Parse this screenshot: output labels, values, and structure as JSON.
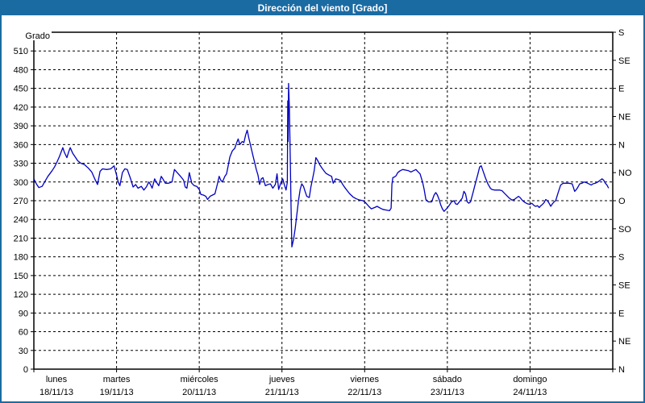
{
  "window": {
    "title": "Dirección del viento [Grado]"
  },
  "colors": {
    "titlebar_bg": "#1b6ba3",
    "frame": "#1b6ba3",
    "line": "#0000c0",
    "grid": "#000000",
    "text": "#000000",
    "background": "#ffffff"
  },
  "chart_data": {
    "type": "line",
    "title": "Dirección del viento [Grado]",
    "ylabel": "Grado",
    "ylim": [
      0,
      540
    ],
    "grid": "dashed",
    "y_ticks_left": [
      0,
      30,
      60,
      90,
      120,
      150,
      180,
      210,
      240,
      270,
      300,
      330,
      360,
      390,
      420,
      450,
      480,
      510
    ],
    "y_ticks_right": [
      {
        "value": 540,
        "label": "S"
      },
      {
        "value": 495,
        "label": "SE"
      },
      {
        "value": 450,
        "label": "E"
      },
      {
        "value": 405,
        "label": "NE"
      },
      {
        "value": 360,
        "label": "N"
      },
      {
        "value": 315,
        "label": "NO"
      },
      {
        "value": 270,
        "label": "O"
      },
      {
        "value": 225,
        "label": "SO"
      },
      {
        "value": 180,
        "label": "S"
      },
      {
        "value": 135,
        "label": "SE"
      },
      {
        "value": 90,
        "label": "E"
      },
      {
        "value": 45,
        "label": "NE"
      },
      {
        "value": 0,
        "label": "N"
      }
    ],
    "x_days": [
      {
        "label": "lunes",
        "date": "18/11/13"
      },
      {
        "label": "martes",
        "date": "19/11/13"
      },
      {
        "label": "miércoles",
        "date": "20/11/13"
      },
      {
        "label": "jueves",
        "date": "21/11/13"
      },
      {
        "label": "viernes",
        "date": "22/11/13"
      },
      {
        "label": "sábado",
        "date": "23/11/13"
      },
      {
        "label": "domingo",
        "date": "24/11/13"
      }
    ],
    "series": [
      {
        "name": "Dirección del viento",
        "color": "#0000c0",
        "points": [
          [
            0.0,
            305
          ],
          [
            0.03,
            297
          ],
          [
            0.06,
            291
          ],
          [
            0.1,
            293
          ],
          [
            0.13,
            300
          ],
          [
            0.17,
            309
          ],
          [
            0.22,
            318
          ],
          [
            0.25,
            324
          ],
          [
            0.28,
            332
          ],
          [
            0.31,
            341
          ],
          [
            0.35,
            355
          ],
          [
            0.37,
            347
          ],
          [
            0.4,
            339
          ],
          [
            0.42,
            348
          ],
          [
            0.44,
            355
          ],
          [
            0.47,
            346
          ],
          [
            0.5,
            340
          ],
          [
            0.53,
            334
          ],
          [
            0.57,
            330
          ],
          [
            0.61,
            328
          ],
          [
            0.66,
            322
          ],
          [
            0.7,
            316
          ],
          [
            0.74,
            304
          ],
          [
            0.77,
            296
          ],
          [
            0.8,
            317
          ],
          [
            0.83,
            321
          ],
          [
            0.88,
            320
          ],
          [
            0.93,
            321
          ],
          [
            0.97,
            326
          ],
          [
            1.0,
            311
          ],
          [
            1.02,
            300
          ],
          [
            1.04,
            294
          ],
          [
            1.07,
            315
          ],
          [
            1.1,
            321
          ],
          [
            1.13,
            320
          ],
          [
            1.17,
            305
          ],
          [
            1.2,
            292
          ],
          [
            1.23,
            296
          ],
          [
            1.26,
            290
          ],
          [
            1.3,
            293
          ],
          [
            1.33,
            287
          ],
          [
            1.36,
            292
          ],
          [
            1.39,
            300
          ],
          [
            1.41,
            296
          ],
          [
            1.43,
            290
          ],
          [
            1.46,
            305
          ],
          [
            1.48,
            300
          ],
          [
            1.51,
            294
          ],
          [
            1.54,
            309
          ],
          [
            1.56,
            305
          ],
          [
            1.59,
            298
          ],
          [
            1.63,
            298
          ],
          [
            1.67,
            300
          ],
          [
            1.7,
            320
          ],
          [
            1.74,
            314
          ],
          [
            1.78,
            308
          ],
          [
            1.81,
            303
          ],
          [
            1.83,
            292
          ],
          [
            1.85,
            290
          ],
          [
            1.88,
            315
          ],
          [
            1.91,
            298
          ],
          [
            1.94,
            294
          ],
          [
            1.97,
            293
          ],
          [
            2.0,
            288
          ],
          [
            2.02,
            280
          ],
          [
            2.05,
            279
          ],
          [
            2.08,
            277
          ],
          [
            2.1,
            272
          ],
          [
            2.13,
            277
          ],
          [
            2.16,
            279
          ],
          [
            2.19,
            281
          ],
          [
            2.22,
            297
          ],
          [
            2.24,
            309
          ],
          [
            2.26,
            303
          ],
          [
            2.28,
            300
          ],
          [
            2.31,
            309
          ],
          [
            2.33,
            313
          ],
          [
            2.35,
            326
          ],
          [
            2.37,
            340
          ],
          [
            2.4,
            350
          ],
          [
            2.43,
            354
          ],
          [
            2.45,
            362
          ],
          [
            2.47,
            369
          ],
          [
            2.49,
            360
          ],
          [
            2.52,
            365
          ],
          [
            2.54,
            363
          ],
          [
            2.56,
            375
          ],
          [
            2.58,
            383
          ],
          [
            2.6,
            370
          ],
          [
            2.62,
            359
          ],
          [
            2.65,
            342
          ],
          [
            2.67,
            331
          ],
          [
            2.69,
            320
          ],
          [
            2.71,
            311
          ],
          [
            2.73,
            296
          ],
          [
            2.75,
            305
          ],
          [
            2.77,
            307
          ],
          [
            2.8,
            294
          ],
          [
            2.83,
            296
          ],
          [
            2.86,
            297
          ],
          [
            2.89,
            290
          ],
          [
            2.92,
            296
          ],
          [
            2.94,
            313
          ],
          [
            2.96,
            288
          ],
          [
            2.99,
            300
          ],
          [
            3.01,
            305
          ],
          [
            3.03,
            295
          ],
          [
            3.05,
            287
          ],
          [
            3.065,
            300
          ],
          [
            3.07,
            430
          ],
          [
            3.075,
            365
          ],
          [
            3.08,
            458
          ],
          [
            3.09,
            420
          ],
          [
            3.1,
            340
          ],
          [
            3.11,
            260
          ],
          [
            3.12,
            196
          ],
          [
            3.14,
            208
          ],
          [
            3.16,
            225
          ],
          [
            3.18,
            248
          ],
          [
            3.2,
            270
          ],
          [
            3.22,
            288
          ],
          [
            3.24,
            297
          ],
          [
            3.26,
            293
          ],
          [
            3.28,
            285
          ],
          [
            3.3,
            277
          ],
          [
            3.33,
            275
          ],
          [
            3.35,
            292
          ],
          [
            3.37,
            305
          ],
          [
            3.39,
            318
          ],
          [
            3.41,
            339
          ],
          [
            3.43,
            335
          ],
          [
            3.46,
            327
          ],
          [
            3.49,
            321
          ],
          [
            3.53,
            314
          ],
          [
            3.57,
            311
          ],
          [
            3.6,
            309
          ],
          [
            3.62,
            298
          ],
          [
            3.65,
            305
          ],
          [
            3.68,
            304
          ],
          [
            3.71,
            302
          ],
          [
            3.73,
            297
          ],
          [
            3.76,
            291
          ],
          [
            3.79,
            286
          ],
          [
            3.82,
            281
          ],
          [
            3.86,
            276
          ],
          [
            3.9,
            273
          ],
          [
            3.94,
            271
          ],
          [
            3.98,
            270
          ],
          [
            4.01,
            267
          ],
          [
            4.05,
            261
          ],
          [
            4.08,
            257
          ],
          [
            4.12,
            259
          ],
          [
            4.15,
            261
          ],
          [
            4.19,
            258
          ],
          [
            4.22,
            256
          ],
          [
            4.26,
            255
          ],
          [
            4.3,
            254
          ],
          [
            4.32,
            258
          ],
          [
            4.33,
            296
          ],
          [
            4.34,
            307
          ],
          [
            4.36,
            308
          ],
          [
            4.38,
            310
          ],
          [
            4.4,
            315
          ],
          [
            4.43,
            318
          ],
          [
            4.46,
            320
          ],
          [
            4.5,
            319
          ],
          [
            4.53,
            318
          ],
          [
            4.56,
            316
          ],
          [
            4.59,
            318
          ],
          [
            4.62,
            320
          ],
          [
            4.64,
            317
          ],
          [
            4.67,
            313
          ],
          [
            4.7,
            300
          ],
          [
            4.72,
            288
          ],
          [
            4.74,
            272
          ],
          [
            4.77,
            268
          ],
          [
            4.81,
            268
          ],
          [
            4.84,
            279
          ],
          [
            4.86,
            283
          ],
          [
            4.88,
            279
          ],
          [
            4.9,
            272
          ],
          [
            4.92,
            263
          ],
          [
            4.94,
            257
          ],
          [
            4.96,
            253
          ],
          [
            4.99,
            257
          ],
          [
            5.02,
            262
          ],
          [
            5.05,
            268
          ],
          [
            5.08,
            270
          ],
          [
            5.1,
            265
          ],
          [
            5.12,
            264
          ],
          [
            5.15,
            269
          ],
          [
            5.18,
            274
          ],
          [
            5.2,
            285
          ],
          [
            5.22,
            281
          ],
          [
            5.24,
            268
          ],
          [
            5.26,
            266
          ],
          [
            5.28,
            268
          ],
          [
            5.31,
            283
          ],
          [
            5.34,
            298
          ],
          [
            5.37,
            313
          ],
          [
            5.39,
            324
          ],
          [
            5.41,
            326
          ],
          [
            5.43,
            318
          ],
          [
            5.46,
            307
          ],
          [
            5.49,
            297
          ],
          [
            5.52,
            290
          ],
          [
            5.54,
            288
          ],
          [
            5.57,
            287
          ],
          [
            5.6,
            287
          ],
          [
            5.63,
            287
          ],
          [
            5.66,
            286
          ],
          [
            5.69,
            282
          ],
          [
            5.72,
            278
          ],
          [
            5.75,
            274
          ],
          [
            5.78,
            271
          ],
          [
            5.81,
            272
          ],
          [
            5.84,
            275
          ],
          [
            5.86,
            277
          ],
          [
            5.88,
            275
          ],
          [
            5.91,
            270
          ],
          [
            5.94,
            267
          ],
          [
            5.97,
            265
          ],
          [
            6.0,
            264
          ],
          [
            6.02,
            266
          ],
          [
            6.05,
            262
          ],
          [
            6.07,
            261
          ],
          [
            6.09,
            262
          ],
          [
            6.11,
            259
          ],
          [
            6.13,
            262
          ],
          [
            6.15,
            264
          ],
          [
            6.17,
            267
          ],
          [
            6.19,
            272
          ],
          [
            6.21,
            270
          ],
          [
            6.23,
            266
          ],
          [
            6.25,
            261
          ],
          [
            6.27,
            265
          ],
          [
            6.29,
            268
          ],
          [
            6.31,
            270
          ],
          [
            6.34,
            283
          ],
          [
            6.37,
            295
          ],
          [
            6.4,
            298
          ],
          [
            6.43,
            298
          ],
          [
            6.47,
            298
          ],
          [
            6.51,
            297
          ],
          [
            6.54,
            285
          ],
          [
            6.56,
            288
          ],
          [
            6.58,
            292
          ],
          [
            6.6,
            297
          ],
          [
            6.63,
            298
          ],
          [
            6.65,
            300
          ],
          [
            6.68,
            299
          ],
          [
            6.71,
            297
          ],
          [
            6.74,
            295
          ],
          [
            6.76,
            297
          ],
          [
            6.79,
            298
          ],
          [
            6.82,
            300
          ],
          [
            6.85,
            303
          ],
          [
            6.87,
            305
          ],
          [
            6.89,
            303
          ],
          [
            6.91,
            298
          ],
          [
            6.93,
            295
          ],
          [
            6.95,
            290
          ]
        ]
      }
    ]
  }
}
